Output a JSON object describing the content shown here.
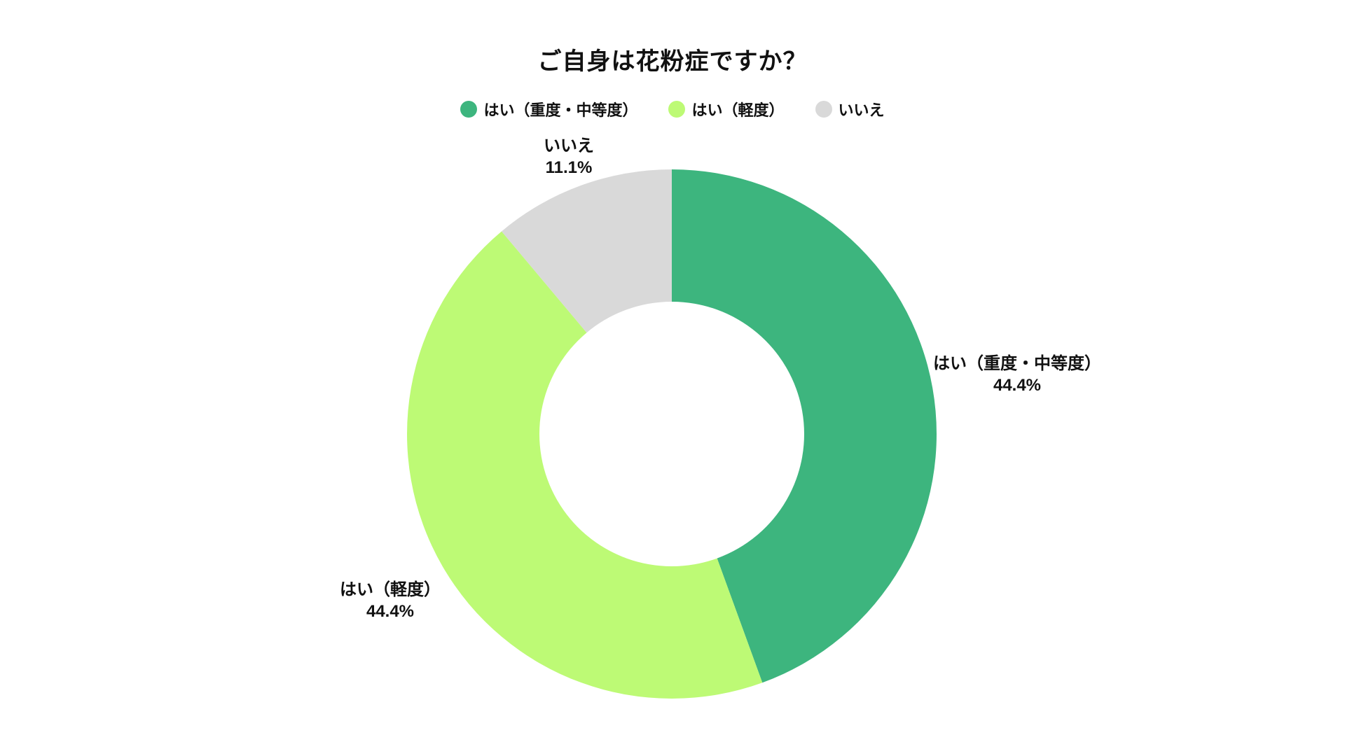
{
  "title": "ご自身は花粉症ですか？",
  "chart_data": {
    "type": "pie",
    "subtype": "donut",
    "title": "ご自身は花粉症ですか？",
    "unit": "%",
    "start_angle_deg": 0,
    "direction": "clockwise",
    "inner_radius_ratio": 0.5,
    "legend_position": "top",
    "background_color": "#ffffff",
    "text_color": "#111111",
    "segments": [
      {
        "id": "severe",
        "label": "はい（重度・中等度）",
        "value": 44.4,
        "percent_label": "44.4%",
        "color": "#3db57e",
        "label_side": "right"
      },
      {
        "id": "mild",
        "label": "はい（軽度）",
        "value": 44.4,
        "percent_label": "44.4%",
        "color": "#bdfa75",
        "label_side": "left"
      },
      {
        "id": "no",
        "label": "いいえ",
        "value": 11.1,
        "percent_label": "11.1%",
        "color": "#d9d9d9",
        "label_side": "top"
      }
    ]
  }
}
